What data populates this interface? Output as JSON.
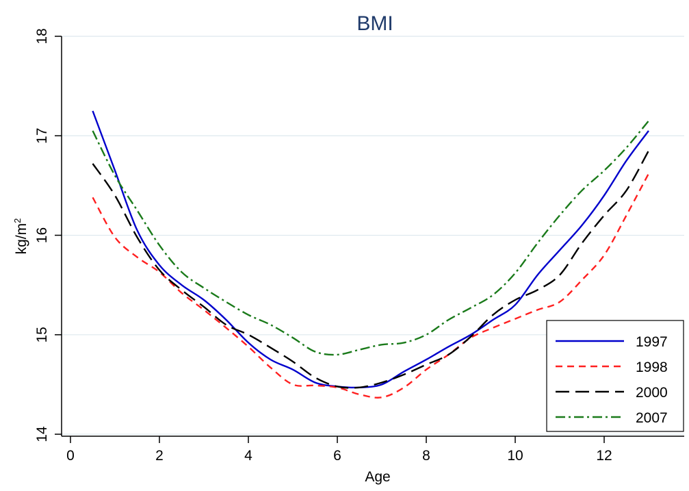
{
  "chart_data": {
    "type": "line",
    "title": "BMI",
    "xlabel": "Age",
    "ylabel_base": "kg/m",
    "ylabel_sup": "2",
    "xlim": [
      -0.2,
      13.8
    ],
    "ylim": [
      13.98,
      18.0
    ],
    "xticks": [
      0,
      2,
      4,
      6,
      8,
      10,
      12
    ],
    "yticks": [
      14,
      15,
      16,
      17,
      18
    ],
    "grid": true,
    "legend_position": "bottom-right",
    "series": [
      {
        "name": "1997",
        "color": "#0000cc",
        "dash": "solid",
        "x": [
          0.5,
          1.0,
          1.5,
          2.0,
          2.5,
          3.0,
          3.5,
          4.0,
          4.5,
          5.0,
          5.5,
          6.0,
          6.5,
          7.0,
          7.5,
          8.0,
          8.5,
          9.0,
          9.5,
          10.0,
          10.5,
          11.0,
          11.5,
          12.0,
          12.5,
          13.0
        ],
        "y": [
          17.25,
          16.65,
          16.05,
          15.7,
          15.5,
          15.35,
          15.15,
          14.92,
          14.75,
          14.65,
          14.52,
          14.48,
          14.47,
          14.5,
          14.63,
          14.75,
          14.88,
          15.0,
          15.15,
          15.3,
          15.6,
          15.85,
          16.1,
          16.4,
          16.75,
          17.05
        ]
      },
      {
        "name": "1998",
        "color": "#ff2020",
        "dash": "10,7",
        "x": [
          0.5,
          1.0,
          1.5,
          2.0,
          2.5,
          3.0,
          3.5,
          4.0,
          4.5,
          5.0,
          5.5,
          6.0,
          6.5,
          7.0,
          7.5,
          8.0,
          8.5,
          9.0,
          9.5,
          10.0,
          10.5,
          11.0,
          11.5,
          12.0,
          12.5,
          13.0
        ],
        "y": [
          16.38,
          15.98,
          15.78,
          15.63,
          15.42,
          15.25,
          15.07,
          14.88,
          14.67,
          14.5,
          14.49,
          14.47,
          14.4,
          14.37,
          14.47,
          14.65,
          14.8,
          14.97,
          15.07,
          15.16,
          15.25,
          15.33,
          15.55,
          15.8,
          16.2,
          16.62
        ]
      },
      {
        "name": "2000",
        "color": "#000000",
        "dash": "20,9",
        "x": [
          0.5,
          1.0,
          1.5,
          2.0,
          2.5,
          3.0,
          3.5,
          4.0,
          4.5,
          5.0,
          5.5,
          6.0,
          6.5,
          7.0,
          7.5,
          8.0,
          8.5,
          9.0,
          9.5,
          10.0,
          10.5,
          11.0,
          11.5,
          12.0,
          12.5,
          13.0
        ],
        "y": [
          16.72,
          16.4,
          15.98,
          15.65,
          15.45,
          15.28,
          15.1,
          15.0,
          14.87,
          14.73,
          14.57,
          14.48,
          14.47,
          14.52,
          14.6,
          14.7,
          14.8,
          14.98,
          15.2,
          15.35,
          15.45,
          15.6,
          15.92,
          16.2,
          16.45,
          16.85
        ]
      },
      {
        "name": "2007",
        "color": "#1a7a1a",
        "dash": "14,5,3,5",
        "x": [
          0.5,
          1.0,
          1.5,
          2.0,
          2.5,
          3.0,
          3.5,
          4.0,
          4.5,
          5.0,
          5.5,
          6.0,
          6.5,
          7.0,
          7.5,
          8.0,
          8.5,
          9.0,
          9.5,
          10.0,
          10.5,
          11.0,
          11.5,
          12.0,
          12.5,
          13.0
        ],
        "y": [
          17.05,
          16.6,
          16.25,
          15.9,
          15.63,
          15.47,
          15.33,
          15.2,
          15.1,
          14.97,
          14.83,
          14.8,
          14.85,
          14.9,
          14.92,
          15.0,
          15.15,
          15.27,
          15.4,
          15.62,
          15.92,
          16.2,
          16.45,
          16.65,
          16.88,
          17.15
        ]
      }
    ]
  }
}
